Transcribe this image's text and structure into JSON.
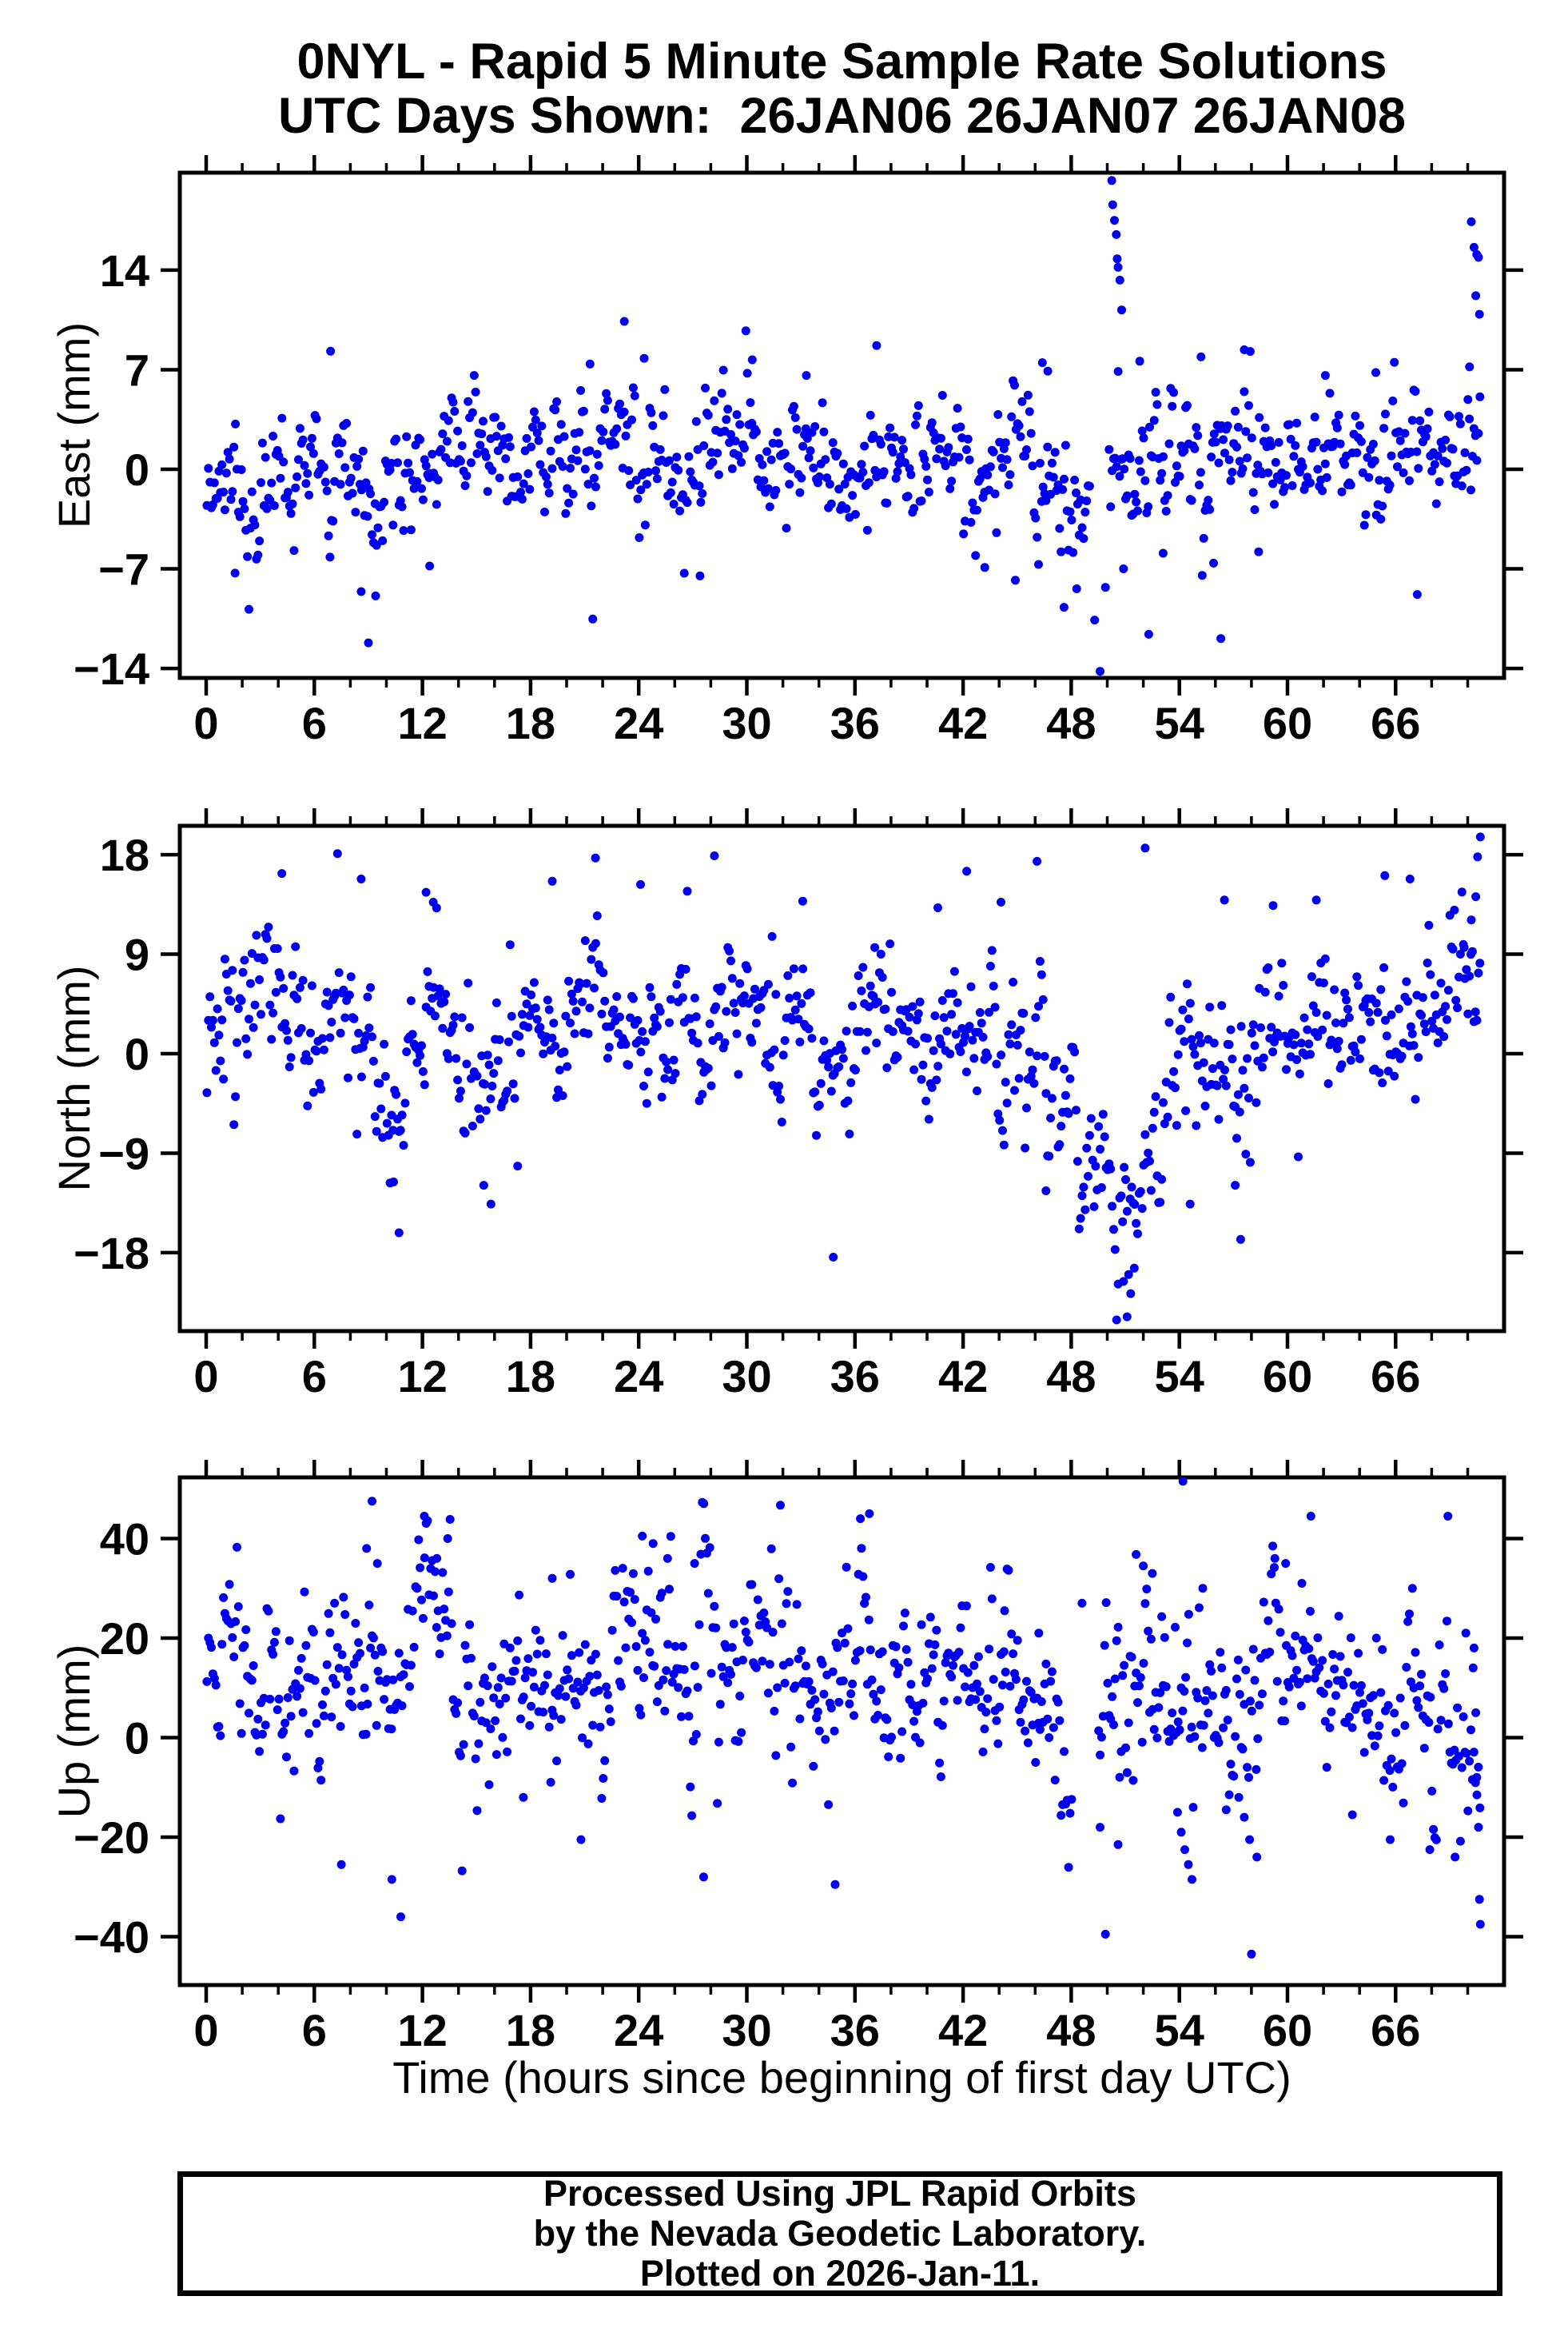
{
  "title": {
    "line1": "0NYL - Rapid 5 Minute Sample Rate Solutions",
    "line2": "UTC Days Shown:  26JAN06 26JAN07 26JAN08"
  },
  "footer": {
    "line1": "Processed Using JPL Rapid Orbits",
    "line2": "by the Nevada Geodetic Laboratory.",
    "line3": "Plotted on 2026-Jan-11."
  },
  "chart_data": {
    "type": "scatter",
    "point_color": "#0000ee",
    "frame_color": "#000000",
    "xlabel": "Time (hours since beginning of first day UTC)",
    "seed": 11,
    "x": {
      "lim": [
        -1.46,
        72.02
      ],
      "ticks": [
        0,
        6,
        12,
        18,
        24,
        30,
        36,
        42,
        48,
        54,
        60,
        66
      ],
      "minor_step": 2,
      "major_step": 6,
      "data_start": 0.04,
      "data_end": 70.7,
      "sample_step_hours": 0.0833
    },
    "panels": [
      {
        "name": "East",
        "ylabel": "East (mm)",
        "ylim": [
          -14.67,
          20.85
        ],
        "yticks": [
          -14,
          -7,
          0,
          7,
          14
        ],
        "sigma": 2.2,
        "tail_prob": 0.045,
        "tail_mult": 2.1,
        "ar1_phi": 0.5,
        "trend": [
          [
            0,
            -0.3
          ],
          [
            3,
            -0.8
          ],
          [
            6,
            -0.5
          ],
          [
            9,
            -1.2
          ],
          [
            12,
            0.3
          ],
          [
            15,
            1.2
          ],
          [
            18,
            0.8
          ],
          [
            21,
            1.0
          ],
          [
            24,
            1.2
          ],
          [
            27,
            0.6
          ],
          [
            30,
            1.4
          ],
          [
            33,
            0.7
          ],
          [
            36,
            -0.6
          ],
          [
            39,
            0.2
          ],
          [
            42,
            0.3
          ],
          [
            45,
            0.0
          ],
          [
            47,
            -1.5
          ],
          [
            48,
            -3.0
          ],
          [
            49,
            -3.5
          ],
          [
            50,
            -1.0
          ],
          [
            51,
            0.5
          ],
          [
            52,
            0.5
          ],
          [
            54,
            1.0
          ],
          [
            57,
            0.5
          ],
          [
            60,
            1.3
          ],
          [
            63,
            1.2
          ],
          [
            66,
            1.0
          ],
          [
            69,
            1.2
          ],
          [
            70.7,
            1.5
          ]
        ],
        "gaps": [
          [
            49.05,
            50.1
          ]
        ],
        "outliers": [
          [
            1.6,
            -7.3
          ],
          [
            6.9,
            8.3
          ],
          [
            8.6,
            -8.6
          ],
          [
            9.0,
            -12.2
          ],
          [
            9.4,
            -8.9
          ],
          [
            12.4,
            -6.8
          ],
          [
            21.3,
            7.4
          ],
          [
            23.2,
            10.4
          ],
          [
            24.3,
            7.8
          ],
          [
            27.4,
            -7.5
          ],
          [
            30.3,
            7.7
          ],
          [
            33.3,
            6.6
          ],
          [
            37.2,
            8.7
          ],
          [
            43.2,
            -6.9
          ],
          [
            44.9,
            -7.8
          ],
          [
            46.4,
            7.5
          ],
          [
            46.7,
            6.9
          ],
          [
            47.6,
            -9.7
          ],
          [
            48.3,
            -8.4
          ],
          [
            49.3,
            -10.6
          ],
          [
            49.6,
            -14.2
          ],
          [
            49.9,
            -8.3
          ],
          [
            50.25,
            20.3
          ],
          [
            50.3,
            18.6
          ],
          [
            50.4,
            17.5
          ],
          [
            50.5,
            16.5
          ],
          [
            50.55,
            14.8
          ],
          [
            50.6,
            14.2
          ],
          [
            50.7,
            13.3
          ],
          [
            50.8,
            11.2
          ],
          [
            50.9,
            -7.0
          ],
          [
            51.8,
            7.6
          ],
          [
            52.3,
            -11.6
          ],
          [
            53.1,
            -5.9
          ],
          [
            55.2,
            7.9
          ],
          [
            55.9,
            -6.6
          ],
          [
            56.3,
            -11.9
          ],
          [
            57.6,
            8.4
          ],
          [
            58.4,
            -5.8
          ],
          [
            62.1,
            6.6
          ],
          [
            64.9,
            6.8
          ],
          [
            67.2,
            -8.8
          ],
          [
            70.1,
            7.2
          ],
          [
            70.2,
            17.4
          ],
          [
            70.35,
            15.6
          ],
          [
            70.45,
            12.2
          ],
          [
            70.5,
            15.1
          ],
          [
            70.6,
            14.9
          ],
          [
            70.65,
            10.9
          ]
        ]
      },
      {
        "name": "North",
        "ylabel": "North (mm)",
        "ylim": [
          -25.1,
          20.6
        ],
        "yticks": [
          -18,
          -9,
          0,
          9,
          18
        ],
        "sigma": 3.5,
        "tail_prob": 0.045,
        "tail_mult": 2.0,
        "ar1_phi": 0.5,
        "trend": [
          [
            0,
            1.5
          ],
          [
            2,
            3.5
          ],
          [
            4,
            4.5
          ],
          [
            6,
            2.0
          ],
          [
            8,
            3.0
          ],
          [
            10,
            -1.5
          ],
          [
            11,
            -3.0
          ],
          [
            12,
            4.0
          ],
          [
            13,
            5.5
          ],
          [
            14,
            1.0
          ],
          [
            15,
            -2.0
          ],
          [
            16,
            -1.0
          ],
          [
            18,
            2.0
          ],
          [
            20,
            2.5
          ],
          [
            22,
            3.0
          ],
          [
            24,
            2.0
          ],
          [
            26,
            2.5
          ],
          [
            28,
            2.0
          ],
          [
            30,
            3.5
          ],
          [
            32,
            2.5
          ],
          [
            33,
            1.0
          ],
          [
            34,
            -0.5
          ],
          [
            36,
            1.5
          ],
          [
            38,
            2.5
          ],
          [
            40,
            2.0
          ],
          [
            42,
            2.5
          ],
          [
            44,
            0.5
          ],
          [
            45,
            -0.5
          ],
          [
            46,
            0.0
          ],
          [
            47,
            -2.0
          ],
          [
            48,
            -5.0
          ],
          [
            49,
            -8.0
          ],
          [
            50,
            -11.0
          ],
          [
            50.8,
            -15.0
          ],
          [
            51.3,
            -16.5
          ],
          [
            52,
            -11.0
          ],
          [
            53,
            -6.0
          ],
          [
            54,
            -2.0
          ],
          [
            55,
            -1.0
          ],
          [
            56,
            0.0
          ],
          [
            57,
            -2.0
          ],
          [
            58,
            1.0
          ],
          [
            59,
            2.5
          ],
          [
            60,
            1.0
          ],
          [
            61,
            3.0
          ],
          [
            62,
            2.0
          ],
          [
            63,
            3.5
          ],
          [
            64,
            2.0
          ],
          [
            65,
            3.0
          ],
          [
            66,
            4.5
          ],
          [
            67,
            4.0
          ],
          [
            68,
            3.5
          ],
          [
            69,
            5.0
          ],
          [
            70,
            7.0
          ],
          [
            70.7,
            9.0
          ]
        ],
        "gaps": [],
        "outliers": [
          [
            4.2,
            16.3
          ],
          [
            8.6,
            15.8
          ],
          [
            10.4,
            -11.6
          ],
          [
            10.7,
            -16.2
          ],
          [
            12.2,
            14.6
          ],
          [
            12.6,
            13.7
          ],
          [
            15.4,
            -11.9
          ],
          [
            15.8,
            -13.6
          ],
          [
            19.2,
            15.6
          ],
          [
            21.6,
            17.7
          ],
          [
            24.1,
            15.3
          ],
          [
            28.2,
            17.9
          ],
          [
            31.4,
            10.6
          ],
          [
            33.1,
            13.8
          ],
          [
            34.8,
            -18.4
          ],
          [
            37.1,
            9.6
          ],
          [
            40.6,
            13.2
          ],
          [
            42.2,
            16.5
          ],
          [
            44.1,
            13.7
          ],
          [
            46.1,
            17.4
          ],
          [
            46.6,
            -12.4
          ],
          [
            50.9,
            -20.6
          ],
          [
            51.1,
            -23.8
          ],
          [
            51.3,
            -21.7
          ],
          [
            51.5,
            -19.4
          ],
          [
            52.1,
            18.6
          ],
          [
            54.6,
            -13.6
          ],
          [
            56.5,
            13.9
          ],
          [
            57.1,
            -11.9
          ],
          [
            57.4,
            -16.8
          ],
          [
            59.2,
            13.4
          ],
          [
            61.6,
            13.9
          ],
          [
            65.4,
            16.1
          ],
          [
            66.8,
            15.8
          ],
          [
            69.8,
            9.6
          ],
          [
            70.2,
            12.1
          ],
          [
            70.45,
            14.2
          ],
          [
            70.55,
            17.8
          ],
          [
            70.7,
            19.6
          ]
        ]
      },
      {
        "name": "Up",
        "ylabel": "Up (mm)",
        "ylim": [
          -49.7,
          52.3
        ],
        "yticks": [
          -40,
          -20,
          0,
          20,
          40
        ],
        "sigma": 9.0,
        "tail_prob": 0.04,
        "tail_mult": 1.8,
        "ar1_phi": 0.45,
        "trend": [
          [
            0,
            12
          ],
          [
            1,
            16
          ],
          [
            2,
            15
          ],
          [
            3,
            9
          ],
          [
            4,
            8
          ],
          [
            5,
            11
          ],
          [
            6,
            12
          ],
          [
            7,
            9
          ],
          [
            8,
            16
          ],
          [
            9,
            20
          ],
          [
            10,
            12
          ],
          [
            11,
            20
          ],
          [
            12,
            26
          ],
          [
            13,
            25
          ],
          [
            14,
            12
          ],
          [
            15,
            6
          ],
          [
            16,
            6
          ],
          [
            17,
            7
          ],
          [
            18,
            11
          ],
          [
            19,
            13
          ],
          [
            20,
            10
          ],
          [
            21,
            8
          ],
          [
            22,
            13
          ],
          [
            23,
            15
          ],
          [
            24,
            17
          ],
          [
            25,
            18
          ],
          [
            26,
            12
          ],
          [
            27,
            14
          ],
          [
            28,
            12
          ],
          [
            29,
            13
          ],
          [
            30,
            16
          ],
          [
            31,
            15
          ],
          [
            32,
            17
          ],
          [
            33,
            13
          ],
          [
            34,
            10
          ],
          [
            35,
            14
          ],
          [
            36,
            18
          ],
          [
            37,
            14
          ],
          [
            38,
            8
          ],
          [
            39,
            8
          ],
          [
            40,
            10
          ],
          [
            41,
            8
          ],
          [
            42,
            10
          ],
          [
            43,
            9
          ],
          [
            44,
            11
          ],
          [
            45,
            9
          ],
          [
            46,
            8
          ],
          [
            47,
            5
          ],
          [
            48,
            0
          ],
          [
            49,
            -4
          ],
          [
            50,
            4
          ],
          [
            51,
            12
          ],
          [
            52,
            16
          ],
          [
            53,
            12
          ],
          [
            54,
            10
          ],
          [
            55,
            10
          ],
          [
            56,
            6
          ],
          [
            57,
            2
          ],
          [
            58,
            8
          ],
          [
            59,
            16
          ],
          [
            60,
            15
          ],
          [
            61,
            16
          ],
          [
            62,
            10
          ],
          [
            63,
            5
          ],
          [
            64,
            6
          ],
          [
            65,
            4
          ],
          [
            66,
            8
          ],
          [
            67,
            6
          ],
          [
            68,
            4
          ],
          [
            69,
            0
          ],
          [
            70,
            -2
          ],
          [
            70.7,
            -6
          ]
        ],
        "gaps": [
          [
            48.1,
            49.5
          ]
        ],
        "outliers": [
          [
            7.5,
            -25.5
          ],
          [
            8.9,
            38
          ],
          [
            9.2,
            47.5
          ],
          [
            9.5,
            35
          ],
          [
            10.3,
            -28.5
          ],
          [
            10.8,
            -36
          ],
          [
            12.1,
            44.5
          ],
          [
            12.8,
            36
          ],
          [
            13.4,
            40
          ],
          [
            17.6,
            -12
          ],
          [
            19.2,
            32
          ],
          [
            20.8,
            -20.5
          ],
          [
            24.2,
            40.5
          ],
          [
            24.8,
            39
          ],
          [
            25.6,
            36
          ],
          [
            27.1,
            35
          ],
          [
            27.6,
            -28
          ],
          [
            34.9,
            -29.5
          ],
          [
            36.3,
            44
          ],
          [
            36.8,
            45
          ],
          [
            44.3,
            25.5
          ],
          [
            46.2,
            21
          ],
          [
            48.6,
            27
          ],
          [
            49.6,
            -18
          ],
          [
            49.9,
            -39.5
          ],
          [
            50.6,
            -21.5
          ],
          [
            51.6,
            36.8
          ],
          [
            52.0,
            34.5
          ],
          [
            52.5,
            33
          ],
          [
            53.9,
            -15
          ],
          [
            54.1,
            -19
          ],
          [
            54.2,
            51.5
          ],
          [
            54.3,
            -22.5
          ],
          [
            54.5,
            -25.5
          ],
          [
            54.7,
            -28.5
          ],
          [
            55.3,
            30
          ],
          [
            56.6,
            -14.5
          ],
          [
            57.3,
            -12
          ],
          [
            57.6,
            -16
          ],
          [
            57.9,
            -20.5
          ],
          [
            58.0,
            -43.5
          ],
          [
            58.3,
            -24
          ],
          [
            59.3,
            36
          ],
          [
            59.9,
            35
          ],
          [
            60.8,
            31
          ],
          [
            61.3,
            44.5
          ],
          [
            63.6,
            -15.5
          ],
          [
            65.7,
            -20.5
          ],
          [
            67.9,
            -22.5
          ],
          [
            68.9,
            44.5
          ],
          [
            69.3,
            -24
          ],
          [
            69.9,
            21
          ],
          [
            70.3,
            14
          ],
          [
            70.35,
            18
          ],
          [
            70.45,
            5
          ],
          [
            70.5,
            -8
          ],
          [
            70.6,
            -18
          ],
          [
            70.65,
            -32.5
          ],
          [
            70.7,
            -37.5
          ]
        ]
      }
    ]
  }
}
